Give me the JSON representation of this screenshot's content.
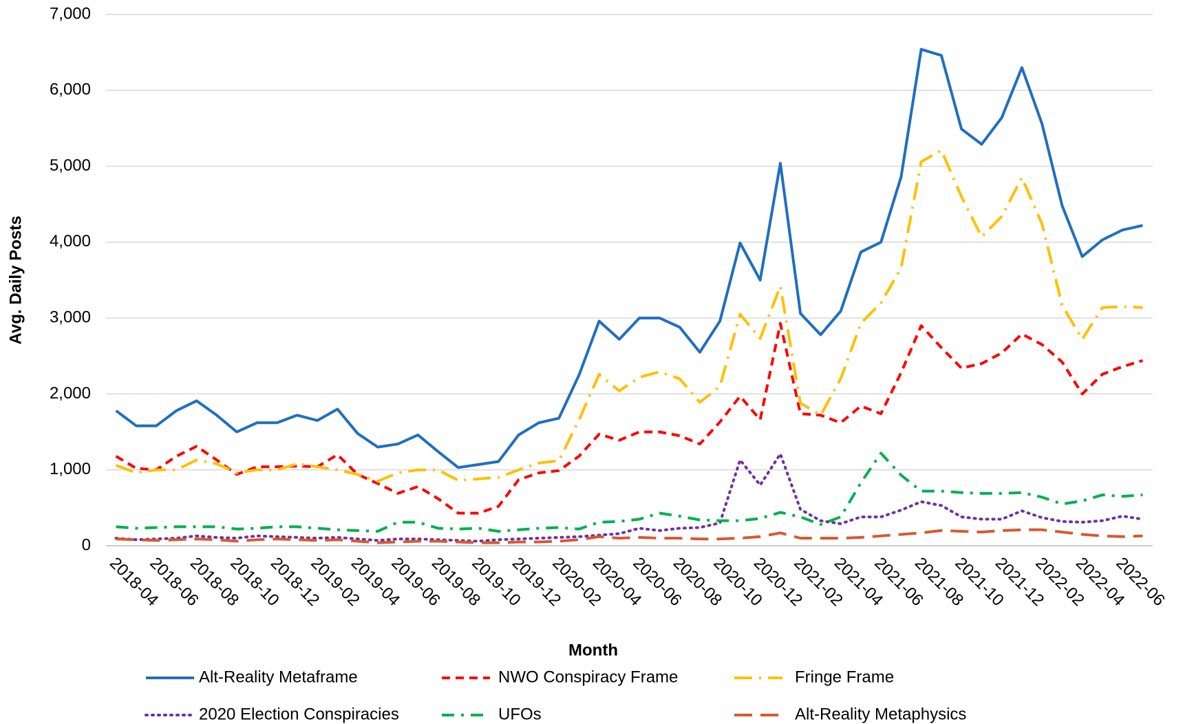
{
  "chart_data": {
    "type": "line",
    "x_label": "Month",
    "y_label": "Avg. Daily Posts",
    "categories": [
      "2018-04",
      null,
      "2018-06",
      null,
      "2018-08",
      null,
      "2018-10",
      null,
      "2018-12",
      null,
      "2019-02",
      null,
      "2019-04",
      null,
      "2019-06",
      null,
      "2019-08",
      null,
      "2019-10",
      null,
      "2019-12",
      null,
      "2020-02",
      null,
      "2020-04",
      null,
      "2020-06",
      null,
      "2020-08",
      null,
      "2020-10",
      null,
      "2020-12",
      null,
      "2021-02",
      null,
      "2021-04",
      null,
      "2021-06",
      null,
      "2021-08",
      null,
      "2021-10",
      null,
      "2021-12",
      null,
      "2022-02",
      null,
      "2022-04",
      null,
      "2022-06",
      null
    ],
    "series": [
      {
        "name": "Alt-Reality Metaframe",
        "color": "#1f6fbf",
        "style": "solid",
        "values": [
          1780,
          1580,
          1580,
          1780,
          1910,
          1720,
          1500,
          1620,
          1620,
          1720,
          1650,
          1800,
          1480,
          1300,
          1340,
          1460,
          1240,
          1030,
          1070,
          1110,
          1460,
          1620,
          1680,
          2250,
          2960,
          2720,
          3000,
          3000,
          2880,
          2550,
          2960,
          3990,
          3500,
          5040,
          3060,
          2780,
          3090,
          3870,
          4000,
          4860,
          6540,
          6460,
          5490,
          5290,
          5640,
          6300,
          5560,
          4480,
          3810,
          4030,
          4160,
          4220
        ]
      },
      {
        "name": "NWO Conspiracy Frame",
        "color": "#ff0000",
        "style": "dash",
        "values": [
          1180,
          1020,
          1000,
          1180,
          1310,
          1130,
          940,
          1040,
          1040,
          1050,
          1040,
          1200,
          940,
          820,
          690,
          780,
          620,
          430,
          430,
          520,
          870,
          960,
          990,
          1180,
          1470,
          1390,
          1500,
          1500,
          1450,
          1340,
          1630,
          1970,
          1660,
          2930,
          1740,
          1720,
          1620,
          1840,
          1740,
          2280,
          2900,
          2610,
          2340,
          2400,
          2540,
          2790,
          2650,
          2420,
          2000,
          2260,
          2360,
          2440
        ]
      },
      {
        "name": "Fringe Frame",
        "color": "#ffc000",
        "style": "long-dash-dot",
        "values": [
          1060,
          960,
          1000,
          1000,
          1130,
          1080,
          960,
          1000,
          1000,
          1080,
          1040,
          1000,
          940,
          850,
          960,
          1000,
          1000,
          860,
          880,
          900,
          1000,
          1090,
          1120,
          1660,
          2260,
          2040,
          2220,
          2290,
          2200,
          1890,
          2100,
          3050,
          2730,
          3420,
          1880,
          1720,
          2200,
          2930,
          3200,
          3660,
          5060,
          5210,
          4600,
          4070,
          4340,
          4850,
          4240,
          3170,
          2720,
          3140,
          3150,
          3140
        ]
      },
      {
        "name": "2020 Election Conspiracies",
        "color": "#7030a0",
        "style": "dot",
        "values": [
          100,
          80,
          90,
          100,
          130,
          110,
          100,
          130,
          120,
          110,
          100,
          110,
          90,
          70,
          90,
          90,
          80,
          70,
          60,
          80,
          90,
          100,
          110,
          120,
          140,
          160,
          230,
          200,
          230,
          240,
          300,
          1130,
          800,
          1210,
          480,
          330,
          290,
          380,
          380,
          470,
          580,
          530,
          380,
          350,
          350,
          460,
          370,
          320,
          310,
          330,
          390,
          350
        ]
      },
      {
        "name": "UFOs",
        "color": "#00b050",
        "style": "dash-dot",
        "values": [
          250,
          230,
          240,
          250,
          250,
          250,
          220,
          230,
          250,
          250,
          230,
          210,
          200,
          190,
          310,
          310,
          230,
          220,
          230,
          190,
          210,
          230,
          240,
          220,
          310,
          320,
          350,
          430,
          390,
          340,
          330,
          330,
          360,
          440,
          380,
          280,
          380,
          830,
          1220,
          930,
          720,
          720,
          700,
          690,
          690,
          700,
          640,
          550,
          590,
          670,
          650,
          670
        ]
      },
      {
        "name": "Alt-Reality Metaphysics",
        "color": "#d65a31",
        "style": "long-dash",
        "values": [
          90,
          80,
          70,
          80,
          90,
          80,
          60,
          80,
          90,
          80,
          70,
          80,
          60,
          40,
          50,
          60,
          60,
          50,
          40,
          40,
          50,
          50,
          60,
          80,
          120,
          100,
          110,
          100,
          100,
          90,
          90,
          100,
          120,
          170,
          100,
          100,
          100,
          110,
          130,
          150,
          170,
          200,
          190,
          180,
          200,
          210,
          210,
          180,
          150,
          130,
          120,
          130
        ]
      }
    ],
    "ylim": [
      0,
      7000
    ],
    "yticks": [
      0,
      {
        "value": 1000,
        "label": "1,000"
      },
      {
        "value": 2000,
        "label": "2,000"
      },
      {
        "value": 3000,
        "label": "3,000"
      },
      {
        "value": 4000,
        "label": "4,000"
      },
      {
        "value": 5000,
        "label": "5,000"
      },
      {
        "value": 6000,
        "label": "6,000"
      },
      {
        "value": 7000,
        "label": "7,000"
      }
    ],
    "grid": true,
    "legend": "bottom"
  }
}
